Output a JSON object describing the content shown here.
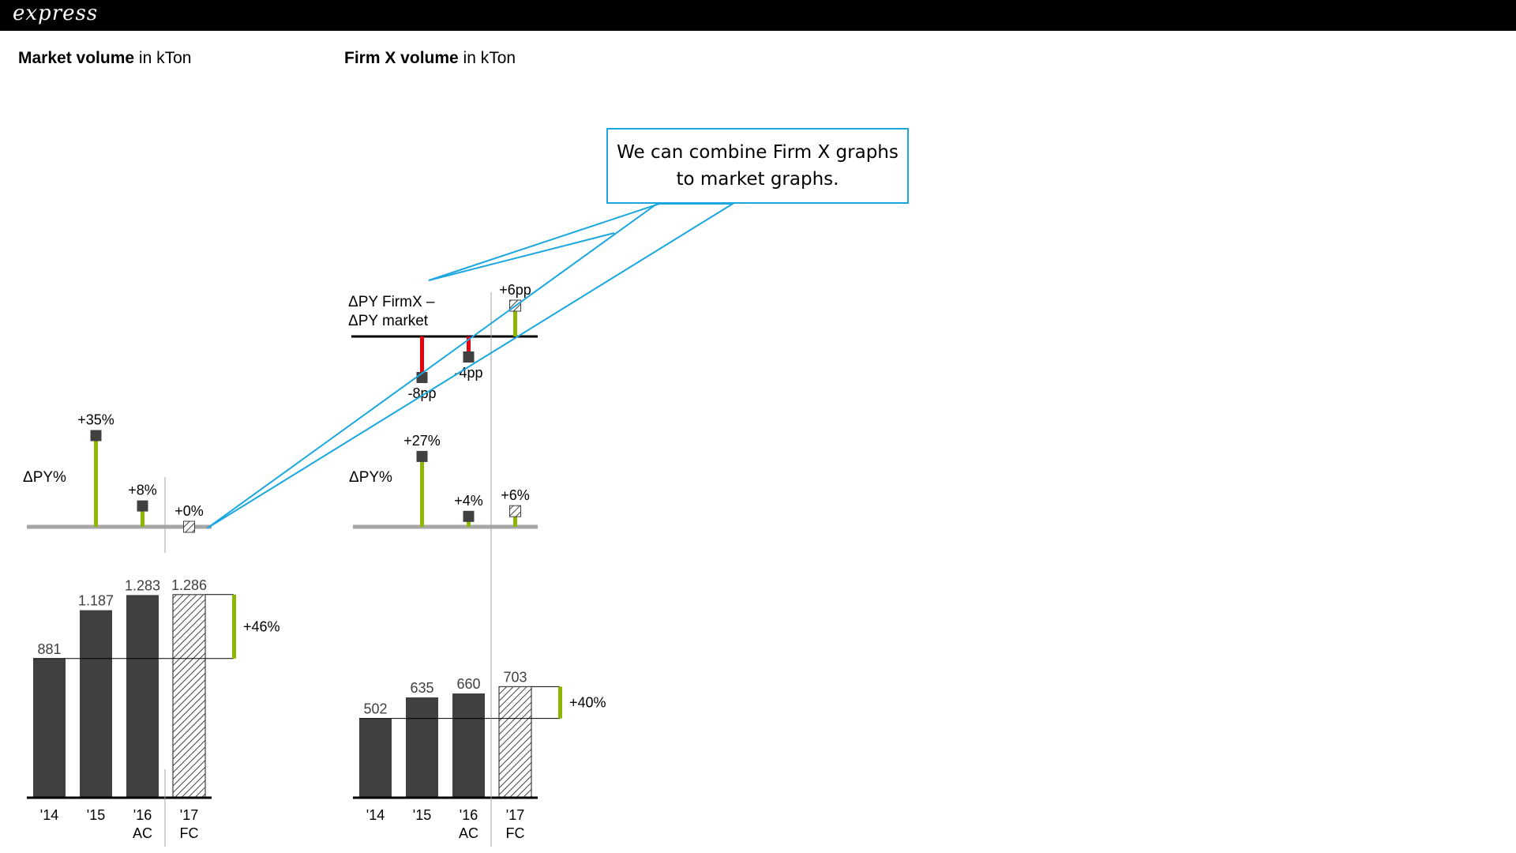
{
  "header": {
    "brand": "express"
  },
  "charts": [
    {
      "title_bold": "Market volume",
      "title_rest": " in kTon"
    },
    {
      "title_bold": "Firm X volume",
      "title_rest": " in kTon"
    }
  ],
  "callout": {
    "text": "We can combine Firm X graphs\nto market graphs."
  },
  "colors": {
    "bar_actual": "#404040",
    "positive": "#8db600",
    "negative": "#e8000b",
    "axis_grey": "#a6a6a6",
    "callout_border": "#1aa7e0"
  },
  "chart_data": [
    {
      "type": "bar",
      "title": "Market volume in kTon",
      "categories": [
        "'14",
        "'15",
        "'16",
        "'17"
      ],
      "scenario_labels": [
        "",
        "",
        "AC",
        "FC"
      ],
      "values": [
        881,
        1187,
        1283,
        1286
      ],
      "value_labels": [
        "881",
        "1.187",
        "1.283",
        "1.286"
      ],
      "scenarios": [
        "AC",
        "AC",
        "AC",
        "FC"
      ],
      "variance_label": "+46%",
      "delta_py": {
        "label": "ΔPY%",
        "categories": [
          "'15",
          "'16",
          "'17"
        ],
        "values": [
          35,
          8,
          0
        ],
        "value_labels": [
          "+35%",
          "+8%",
          "+0%"
        ]
      }
    },
    {
      "type": "bar",
      "title": "Firm X volume in kTon",
      "categories": [
        "'14",
        "'15",
        "'16",
        "'17"
      ],
      "scenario_labels": [
        "",
        "",
        "AC",
        "FC"
      ],
      "values": [
        502,
        635,
        660,
        703
      ],
      "value_labels": [
        "502",
        "635",
        "660",
        "703"
      ],
      "scenarios": [
        "AC",
        "AC",
        "AC",
        "FC"
      ],
      "variance_label": "+40%",
      "delta_py": {
        "label": "ΔPY%",
        "categories": [
          "'15",
          "'16",
          "'17"
        ],
        "values": [
          27,
          4,
          6
        ],
        "value_labels": [
          "+27%",
          "+4%",
          "+6%"
        ]
      },
      "delta_vs_market": {
        "label_lines": [
          "ΔPY FirmX –",
          "ΔPY market"
        ],
        "categories": [
          "'15",
          "'16",
          "'17"
        ],
        "values": [
          -8,
          -4,
          6
        ],
        "value_labels": [
          "-8pp",
          "-4pp",
          "+6pp"
        ]
      }
    }
  ]
}
